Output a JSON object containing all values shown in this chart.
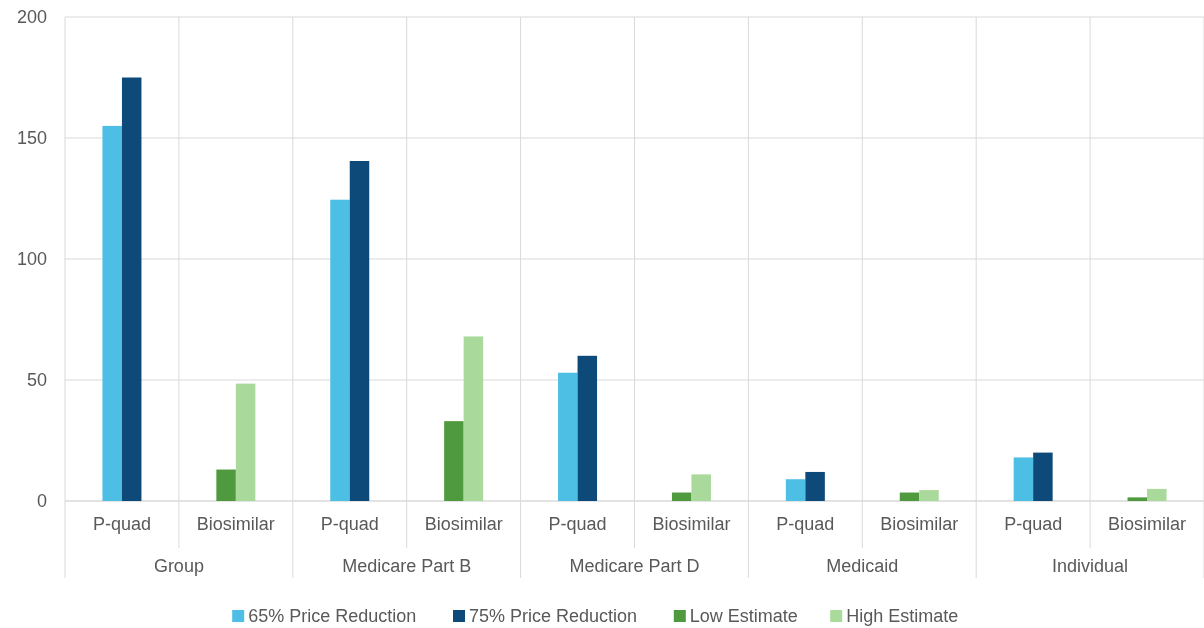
{
  "chart_data": {
    "type": "bar",
    "categories": [
      "P-quad",
      "Biosimilar",
      "P-quad",
      "Biosimilar",
      "P-quad",
      "Biosimilar",
      "P-quad",
      "Biosimilar",
      "P-quad",
      "Biosimilar"
    ],
    "annotations": [
      "Group",
      "Medicare Part B",
      "Medicare Part D",
      "Medicaid",
      "Individual"
    ],
    "series": [
      {
        "name": "65% Price Reduction",
        "color": "#4dbee4",
        "values": [
          155,
          null,
          124.5,
          null,
          53,
          null,
          9,
          null,
          18,
          null
        ]
      },
      {
        "name": "75% Price Reduction",
        "color": "#0d4a7a",
        "values": [
          175,
          null,
          140.5,
          null,
          60,
          null,
          12,
          null,
          20,
          null
        ]
      },
      {
        "name": "Low Estimate",
        "color": "#4f9a3e",
        "values": [
          null,
          13,
          null,
          33,
          null,
          3.5,
          null,
          3.5,
          null,
          1.5
        ]
      },
      {
        "name": "High Estimate",
        "color": "#a9d99b",
        "values": [
          null,
          48.5,
          null,
          68,
          null,
          11,
          null,
          4.5,
          null,
          5
        ]
      }
    ],
    "ylim": [
      0,
      200
    ],
    "yticks": [
      0,
      50,
      100,
      150,
      200
    ],
    "grid": "y",
    "legend": "bottom"
  }
}
